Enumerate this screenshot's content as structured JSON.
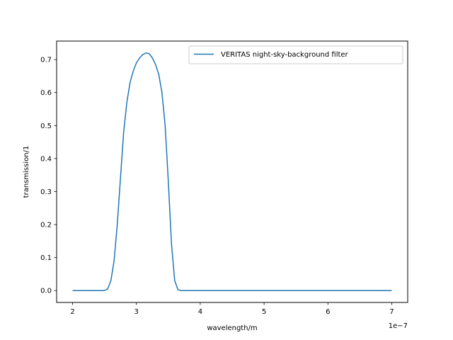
{
  "chart_data": {
    "type": "line",
    "xlabel": "wavelength/m",
    "ylabel": "transmission/1",
    "x_offset_text": "1e−7",
    "xlim": [
      1.75,
      7.25
    ],
    "ylim": [
      -0.036,
      0.756
    ],
    "x_ticks": [
      2,
      3,
      4,
      5,
      6,
      7
    ],
    "x_tick_labels": [
      "2",
      "3",
      "4",
      "5",
      "6",
      "7"
    ],
    "y_ticks": [
      0.0,
      0.1,
      0.2,
      0.3,
      0.4,
      0.5,
      0.6,
      0.7
    ],
    "y_tick_labels": [
      "0.0",
      "0.1",
      "0.2",
      "0.3",
      "0.4",
      "0.5",
      "0.6",
      "0.7"
    ],
    "grid": false,
    "legend_position": "upper right",
    "series": [
      {
        "name": "VERITAS night-sky-background filter",
        "color": "#1f77b4",
        "x": [
          2.0,
          2.5,
          2.55,
          2.6,
          2.65,
          2.7,
          2.75,
          2.8,
          2.85,
          2.9,
          2.95,
          3.0,
          3.05,
          3.1,
          3.15,
          3.2,
          3.25,
          3.3,
          3.35,
          3.4,
          3.45,
          3.5,
          3.55,
          3.6,
          3.65,
          3.7,
          3.75,
          3.8,
          3.85,
          3.9,
          7.0
        ],
        "y": [
          0.0,
          0.0,
          0.005,
          0.03,
          0.09,
          0.2,
          0.34,
          0.48,
          0.57,
          0.63,
          0.665,
          0.69,
          0.705,
          0.715,
          0.72,
          0.718,
          0.705,
          0.685,
          0.655,
          0.6,
          0.5,
          0.33,
          0.14,
          0.03,
          0.003,
          0.0,
          0.0,
          0.0,
          0.0,
          0.0,
          0.0
        ]
      }
    ]
  }
}
